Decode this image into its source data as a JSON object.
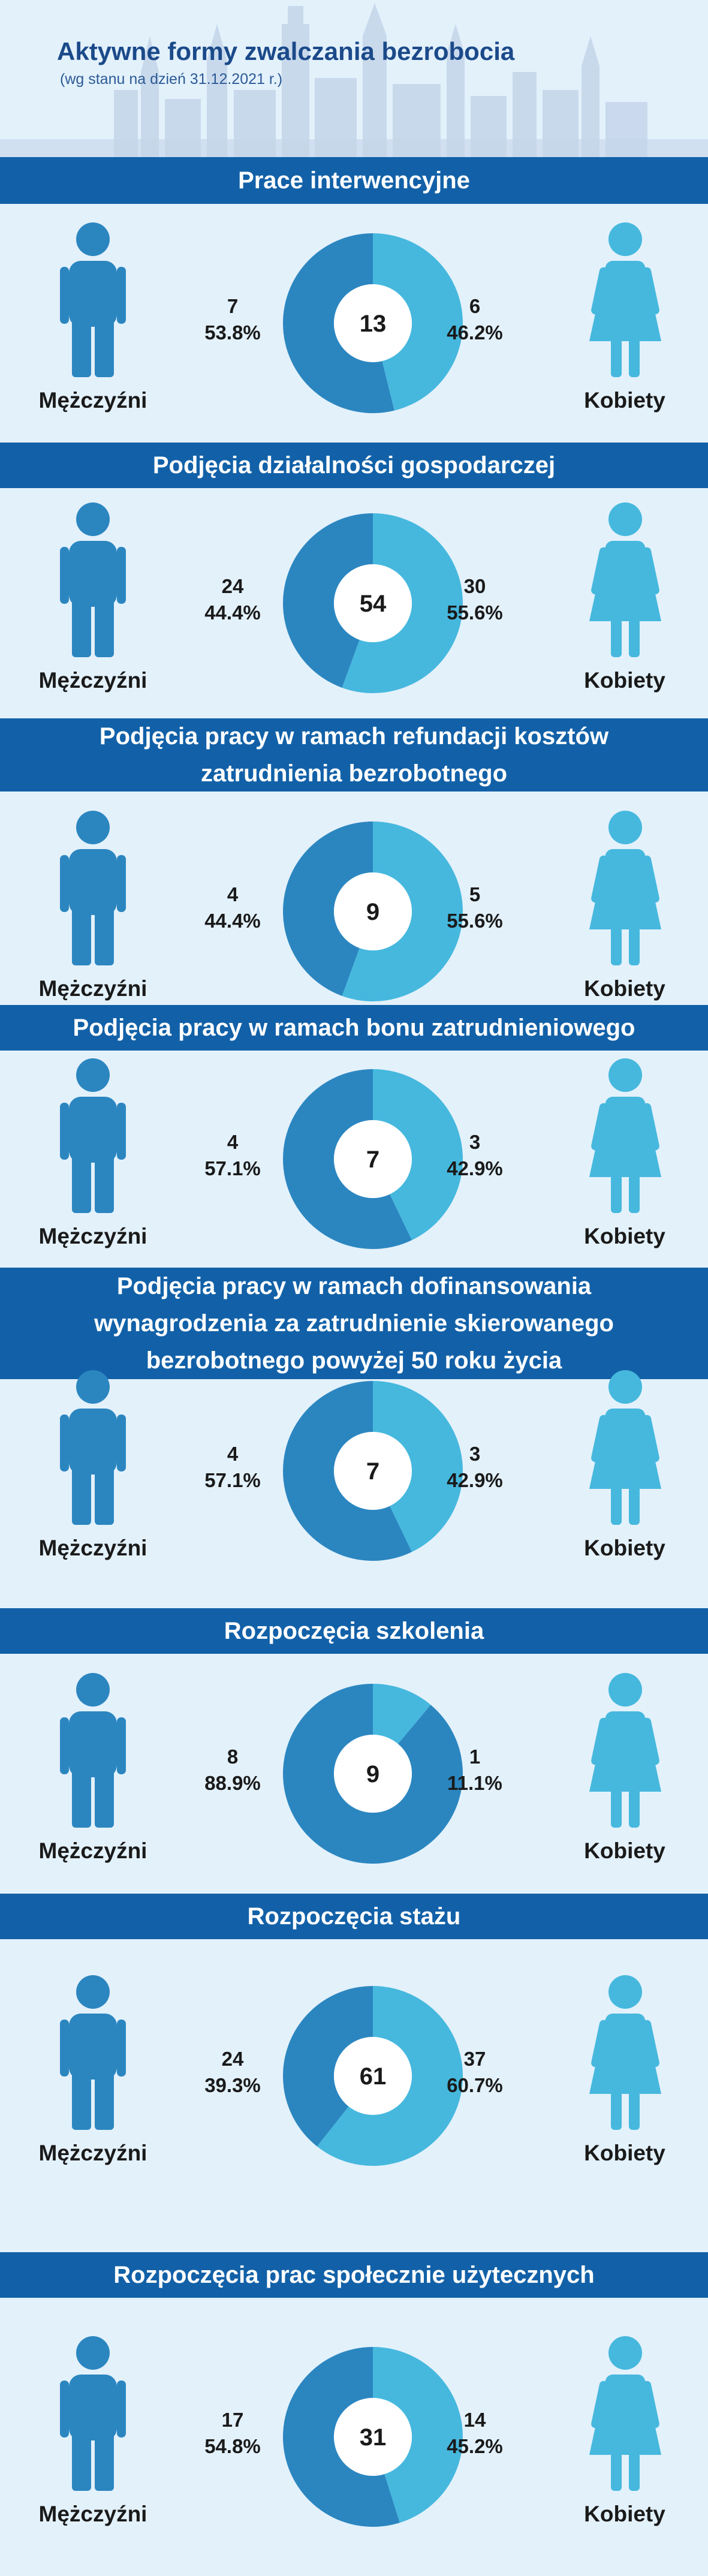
{
  "header": {
    "title": "Aktywne formy zwalczania bezrobocia",
    "subtitle": "(wg stanu na dzień 31.12.2021 r.)"
  },
  "legend": {
    "men": "Mężczyźni",
    "women": "Kobiety"
  },
  "colors": {
    "band": "#1261a8",
    "men": "#2b86c0",
    "women": "#46b8de",
    "background": "#e3f1fb"
  },
  "sections": [
    {
      "title_lines": [
        "Prace interwencyjne"
      ],
      "total": "13",
      "men": {
        "count": "7",
        "percent": "53.8%"
      },
      "women": {
        "count": "6",
        "percent": "46.2%"
      }
    },
    {
      "title_lines": [
        "Podjęcia działalności gospodarczej"
      ],
      "total": "54",
      "men": {
        "count": "24",
        "percent": "44.4%"
      },
      "women": {
        "count": "30",
        "percent": "55.6%"
      }
    },
    {
      "title_lines": [
        "Podjęcia pracy w ramach refundacji kosztów",
        "zatrudnienia bezrobotnego"
      ],
      "total": "9",
      "men": {
        "count": "4",
        "percent": "44.4%"
      },
      "women": {
        "count": "5",
        "percent": "55.6%"
      }
    },
    {
      "title_lines": [
        "Podjęcia pracy w ramach bonu zatrudnieniowego"
      ],
      "total": "7",
      "men": {
        "count": "4",
        "percent": "57.1%"
      },
      "women": {
        "count": "3",
        "percent": "42.9%"
      }
    },
    {
      "title_lines": [
        "Podjęcia pracy w ramach dofinansowania",
        "wynagrodzenia za zatrudnienie skierowanego",
        "bezrobotnego powyżej 50 roku życia"
      ],
      "total": "7",
      "men": {
        "count": "4",
        "percent": "57.1%"
      },
      "women": {
        "count": "3",
        "percent": "42.9%"
      }
    },
    {
      "title_lines": [
        "Rozpoczęcia szkolenia"
      ],
      "total": "9",
      "men": {
        "count": "8",
        "percent": "88.9%"
      },
      "women": {
        "count": "1",
        "percent": "11.1%"
      }
    },
    {
      "title_lines": [
        "Rozpoczęcia stażu"
      ],
      "total": "61",
      "men": {
        "count": "24",
        "percent": "39.3%"
      },
      "women": {
        "count": "37",
        "percent": "60.7%"
      }
    },
    {
      "title_lines": [
        "Rozpoczęcia prac społecznie użytecznych"
      ],
      "total": "31",
      "men": {
        "count": "17",
        "percent": "54.8%"
      },
      "women": {
        "count": "14",
        "percent": "45.2%"
      }
    }
  ],
  "chart_data": [
    {
      "type": "pie",
      "title": "Prace interwencyjne",
      "categories": [
        "Mężczyźni",
        "Kobiety"
      ],
      "values": [
        7,
        6
      ],
      "percent": [
        53.8,
        46.2
      ],
      "total": 13
    },
    {
      "type": "pie",
      "title": "Podjęcia działalności gospodarczej",
      "categories": [
        "Mężczyźni",
        "Kobiety"
      ],
      "values": [
        24,
        30
      ],
      "percent": [
        44.4,
        55.6
      ],
      "total": 54
    },
    {
      "type": "pie",
      "title": "Podjęcia pracy w ramach refundacji kosztów zatrudnienia bezrobotnego",
      "categories": [
        "Mężczyźni",
        "Kobiety"
      ],
      "values": [
        4,
        5
      ],
      "percent": [
        44.4,
        55.6
      ],
      "total": 9
    },
    {
      "type": "pie",
      "title": "Podjęcia pracy w ramach bonu zatrudnieniowego",
      "categories": [
        "Mężczyźni",
        "Kobiety"
      ],
      "values": [
        4,
        3
      ],
      "percent": [
        57.1,
        42.9
      ],
      "total": 7
    },
    {
      "type": "pie",
      "title": "Podjęcia pracy w ramach dofinansowania wynagrodzenia za zatrudnienie skierowanego bezrobotnego powyżej 50 roku życia",
      "categories": [
        "Mężczyźni",
        "Kobiety"
      ],
      "values": [
        4,
        3
      ],
      "percent": [
        57.1,
        42.9
      ],
      "total": 7
    },
    {
      "type": "pie",
      "title": "Rozpoczęcia szkolenia",
      "categories": [
        "Mężczyźni",
        "Kobiety"
      ],
      "values": [
        8,
        1
      ],
      "percent": [
        88.9,
        11.1
      ],
      "total": 9
    },
    {
      "type": "pie",
      "title": "Rozpoczęcia stażu",
      "categories": [
        "Mężczyźni",
        "Kobiety"
      ],
      "values": [
        24,
        37
      ],
      "percent": [
        39.3,
        60.7
      ],
      "total": 61
    },
    {
      "type": "pie",
      "title": "Rozpoczęcia prac społecznie użytecznych",
      "categories": [
        "Mężczyźni",
        "Kobiety"
      ],
      "values": [
        17,
        14
      ],
      "percent": [
        54.8,
        45.2
      ],
      "total": 31
    }
  ]
}
